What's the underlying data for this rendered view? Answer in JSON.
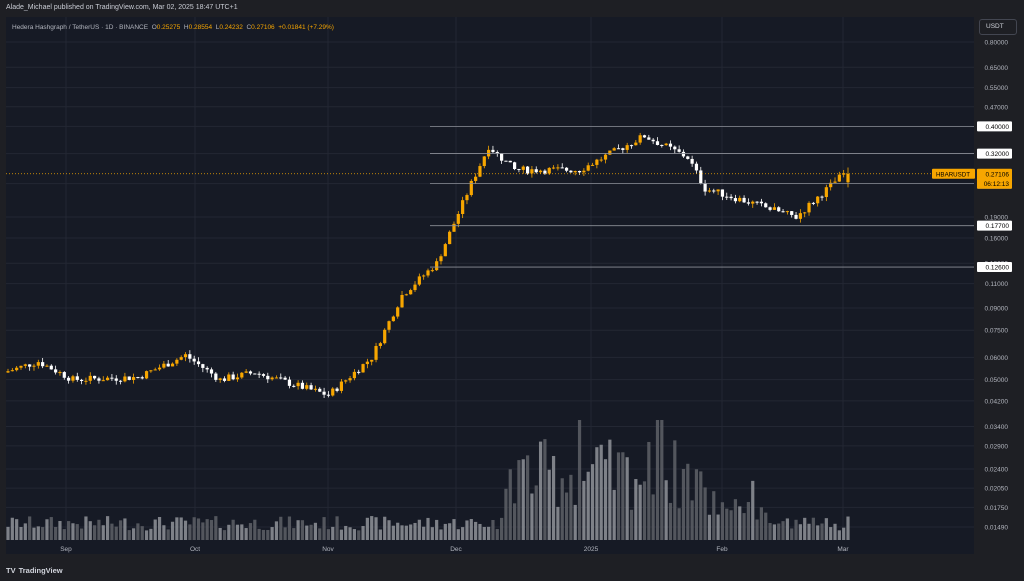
{
  "header": {
    "attribution": "Alade_Michael published on TradingView.com, Mar 02, 2025 18:47 UTC+1"
  },
  "legend": {
    "symbol": "Hedera Hashgraph / TetherUS · 1D · BINANCE",
    "open_label": "O",
    "open": "0.25275",
    "high_label": "H",
    "high": "0.28554",
    "low_label": "L",
    "low": "0.24232",
    "close_label": "C",
    "close": "0.27106",
    "change": "+0.01841 (+7.29%)"
  },
  "currency_button": "USDT",
  "footer": {
    "brand": "TradingView",
    "brand_logo": "TV"
  },
  "colors": {
    "up": "#f7a600",
    "down": "#ffffff",
    "background": "#161a25",
    "grid": "#232733",
    "level_line": "#8c8f97"
  },
  "chart_data": {
    "type": "candlestick",
    "scale": "log",
    "grid": true,
    "y_ticks": [
      "0.80000",
      "0.65000",
      "0.55000",
      "0.47000",
      "0.40000",
      "0.32000",
      "0.25000",
      "0.19000",
      "0.16000",
      "0.13000",
      "0.11000",
      "0.09000",
      "0.07500",
      "0.06000",
      "0.05000",
      "0.04200",
      "0.03400",
      "0.02900",
      "0.02400",
      "0.02050",
      "0.01750",
      "0.01490"
    ],
    "ylim": [
      0.0138,
      0.84
    ],
    "x_ticks": [
      "Sep",
      "Oct",
      "Nov",
      "Dec",
      "2025",
      "Feb",
      "Mar"
    ],
    "price_levels": [
      "0.40000",
      "0.32000",
      "0.25000",
      "0.17700",
      "0.12600"
    ],
    "last_price": {
      "symbol": "HBARUSDT",
      "price": "0.27106",
      "countdown": "06:12:13"
    },
    "ohlc_keypoints": [
      {
        "date": "Aug 20",
        "close": 0.053
      },
      {
        "date": "Aug 28",
        "close": 0.058
      },
      {
        "date": "Sep 05",
        "close": 0.05
      },
      {
        "date": "Sep 20",
        "close": 0.051
      },
      {
        "date": "Sep 30",
        "close": 0.061
      },
      {
        "date": "Oct 10",
        "close": 0.05
      },
      {
        "date": "Oct 20",
        "close": 0.053
      },
      {
        "date": "Nov 04",
        "close": 0.044
      },
      {
        "date": "Nov 12",
        "close": 0.06
      },
      {
        "date": "Nov 18",
        "close": 0.1
      },
      {
        "date": "Nov 24",
        "close": 0.13
      },
      {
        "date": "Nov 30",
        "close": 0.25
      },
      {
        "date": "Dec 03",
        "close": 0.34
      },
      {
        "date": "Dec 10",
        "close": 0.28
      },
      {
        "date": "Dec 31",
        "close": 0.28
      },
      {
        "date": "Jan 18",
        "close": 0.37
      },
      {
        "date": "Jan 30",
        "close": 0.31
      },
      {
        "date": "Feb 06",
        "close": 0.24
      },
      {
        "date": "Feb 20",
        "close": 0.22
      },
      {
        "date": "Feb 26",
        "close": 0.19
      },
      {
        "date": "Mar 02",
        "open": 0.25275,
        "high": 0.28554,
        "low": 0.24232,
        "close": 0.27106
      }
    ]
  }
}
